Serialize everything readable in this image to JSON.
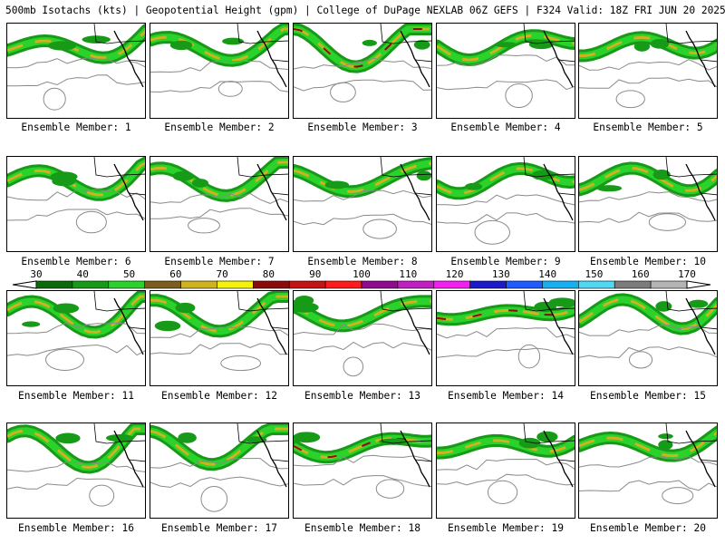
{
  "header": {
    "title": "500mb Isotachs (kts) | Geopotential Height (gpm) | College of DuPage NEXLAB   06Z GEFS | F324 Valid: 18Z FRI JUN 20 2025"
  },
  "colorbar": {
    "labels": [
      "30",
      "40",
      "50",
      "60",
      "70",
      "80",
      "90",
      "100",
      "110",
      "120",
      "130",
      "140",
      "150",
      "160",
      "170"
    ],
    "colors": [
      "#0b6b0b",
      "#179a17",
      "#2bd22b",
      "#7b5e1e",
      "#cfb21f",
      "#f4f20a",
      "#8b0a0a",
      "#c21414",
      "#ff1b1b",
      "#8f0c8f",
      "#c21fc2",
      "#f21ff2",
      "#1a1ac8",
      "#1f5cff",
      "#16b0f0",
      "#4fd8f4",
      "#7c7c7c",
      "#b4b4b4"
    ]
  },
  "members": [
    {
      "label": "Ensemble Member: 1"
    },
    {
      "label": "Ensemble Member: 2"
    },
    {
      "label": "Ensemble Member: 3"
    },
    {
      "label": "Ensemble Member: 4"
    },
    {
      "label": "Ensemble Member: 5"
    },
    {
      "label": "Ensemble Member: 6"
    },
    {
      "label": "Ensemble Member: 7"
    },
    {
      "label": "Ensemble Member: 8"
    },
    {
      "label": "Ensemble Member: 9"
    },
    {
      "label": "Ensemble Member: 10"
    },
    {
      "label": "Ensemble Member: 11"
    },
    {
      "label": "Ensemble Member: 12"
    },
    {
      "label": "Ensemble Member: 13"
    },
    {
      "label": "Ensemble Member: 14"
    },
    {
      "label": "Ensemble Member: 15"
    },
    {
      "label": "Ensemble Member: 16"
    },
    {
      "label": "Ensemble Member: 17"
    },
    {
      "label": "Ensemble Member: 18"
    },
    {
      "label": "Ensemble Member: 19"
    },
    {
      "label": "Ensemble Member: 20"
    }
  ]
}
